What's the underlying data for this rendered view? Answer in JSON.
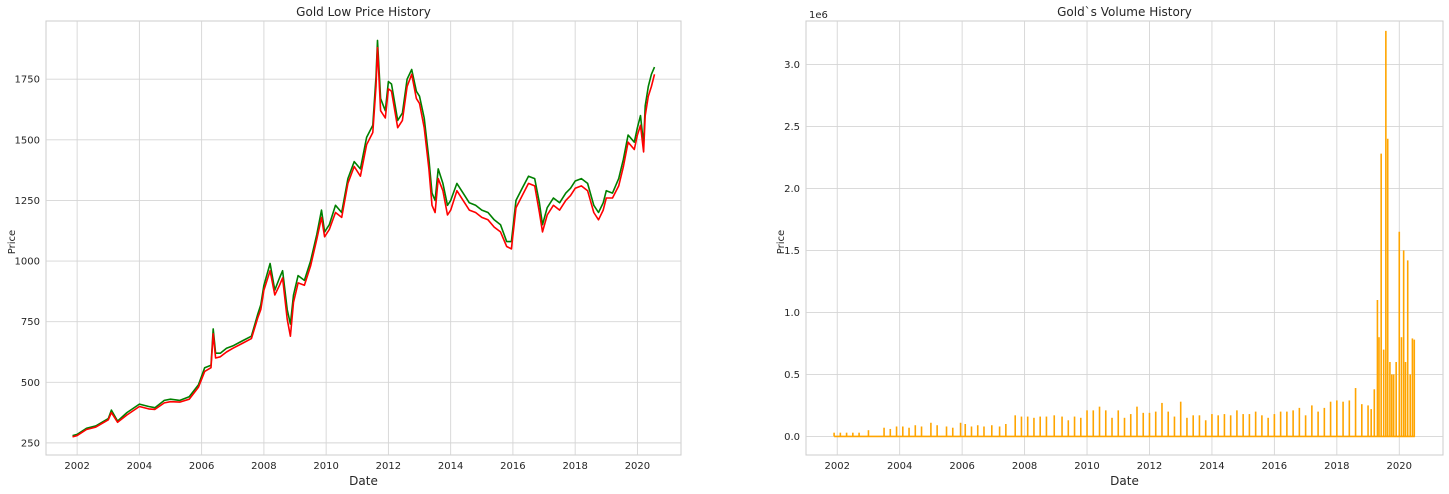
{
  "chart_data": [
    {
      "type": "line",
      "title": "Gold Low Price History",
      "xlabel": "Date",
      "ylabel": "Price",
      "xlim": [
        2001.0,
        2021.4
      ],
      "ylim": [
        200,
        1990
      ],
      "xticks": [
        2002,
        2004,
        2006,
        2008,
        2010,
        2012,
        2014,
        2016,
        2018,
        2020
      ],
      "xtick_labels": [
        "2002",
        "2004",
        "2006",
        "2008",
        "2010",
        "2012",
        "2014",
        "2016",
        "2018",
        "2020"
      ],
      "yticks": [
        250,
        500,
        750,
        1000,
        1250,
        1500,
        1750
      ],
      "ytick_labels": [
        "250",
        "500",
        "750",
        "1000",
        "1250",
        "1500",
        "1750"
      ],
      "grid": true,
      "series": [
        {
          "color": "#008000",
          "x": [
            2001.85,
            2002.0,
            2002.3,
            2002.6,
            2003.0,
            2003.1,
            2003.3,
            2003.6,
            2004.0,
            2004.3,
            2004.5,
            2004.8,
            2005.0,
            2005.3,
            2005.6,
            2005.9,
            2006.1,
            2006.3,
            2006.37,
            2006.45,
            2006.6,
            2006.8,
            2007.0,
            2007.3,
            2007.6,
            2007.8,
            2007.9,
            2008.0,
            2008.2,
            2008.35,
            2008.5,
            2008.6,
            2008.75,
            2008.85,
            2008.95,
            2009.1,
            2009.3,
            2009.5,
            2009.7,
            2009.85,
            2009.95,
            2010.1,
            2010.3,
            2010.5,
            2010.7,
            2010.9,
            2011.1,
            2011.3,
            2011.5,
            2011.6,
            2011.65,
            2011.75,
            2011.9,
            2012.0,
            2012.1,
            2012.3,
            2012.45,
            2012.6,
            2012.75,
            2012.9,
            2013.0,
            2013.15,
            2013.3,
            2013.4,
            2013.5,
            2013.6,
            2013.75,
            2013.9,
            2014.0,
            2014.2,
            2014.4,
            2014.6,
            2014.8,
            2015.0,
            2015.2,
            2015.4,
            2015.6,
            2015.8,
            2015.95,
            2016.1,
            2016.3,
            2016.5,
            2016.7,
            2016.85,
            2016.95,
            2017.1,
            2017.3,
            2017.5,
            2017.7,
            2017.85,
            2018.0,
            2018.2,
            2018.4,
            2018.6,
            2018.75,
            2018.9,
            2019.0,
            2019.2,
            2019.4,
            2019.55,
            2019.7,
            2019.9,
            2020.0,
            2020.1,
            2020.2,
            2020.25,
            2020.35,
            2020.45,
            2020.55
          ],
          "y": [
            280,
            285,
            310,
            320,
            350,
            385,
            340,
            375,
            410,
            400,
            395,
            425,
            430,
            425,
            440,
            490,
            560,
            570,
            720,
            620,
            620,
            640,
            650,
            670,
            690,
            780,
            820,
            900,
            990,
            880,
            930,
            960,
            800,
            740,
            860,
            940,
            920,
            1000,
            1110,
            1210,
            1120,
            1150,
            1230,
            1200,
            1340,
            1410,
            1380,
            1510,
            1560,
            1760,
            1910,
            1670,
            1620,
            1740,
            1730,
            1580,
            1610,
            1750,
            1790,
            1700,
            1680,
            1590,
            1420,
            1280,
            1250,
            1380,
            1320,
            1230,
            1250,
            1320,
            1280,
            1240,
            1230,
            1210,
            1200,
            1170,
            1150,
            1080,
            1080,
            1250,
            1300,
            1350,
            1340,
            1240,
            1150,
            1220,
            1260,
            1240,
            1280,
            1300,
            1330,
            1340,
            1320,
            1230,
            1200,
            1240,
            1290,
            1280,
            1340,
            1420,
            1520,
            1490,
            1550,
            1600,
            1480,
            1640,
            1720,
            1770,
            1800
          ]
        },
        {
          "color": "#ff0000",
          "x": [
            2001.85,
            2002.0,
            2002.3,
            2002.6,
            2003.0,
            2003.1,
            2003.3,
            2003.6,
            2004.0,
            2004.3,
            2004.5,
            2004.8,
            2005.0,
            2005.3,
            2005.6,
            2005.9,
            2006.1,
            2006.3,
            2006.37,
            2006.45,
            2006.6,
            2006.8,
            2007.0,
            2007.3,
            2007.6,
            2007.8,
            2007.9,
            2008.0,
            2008.2,
            2008.35,
            2008.5,
            2008.6,
            2008.75,
            2008.85,
            2008.95,
            2009.1,
            2009.3,
            2009.5,
            2009.7,
            2009.85,
            2009.95,
            2010.1,
            2010.3,
            2010.5,
            2010.7,
            2010.9,
            2011.1,
            2011.3,
            2011.5,
            2011.6,
            2011.65,
            2011.75,
            2011.9,
            2012.0,
            2012.1,
            2012.3,
            2012.45,
            2012.6,
            2012.75,
            2012.9,
            2013.0,
            2013.15,
            2013.3,
            2013.4,
            2013.5,
            2013.6,
            2013.75,
            2013.9,
            2014.0,
            2014.2,
            2014.4,
            2014.6,
            2014.8,
            2015.0,
            2015.2,
            2015.4,
            2015.6,
            2015.8,
            2015.95,
            2016.1,
            2016.3,
            2016.5,
            2016.7,
            2016.85,
            2016.95,
            2017.1,
            2017.3,
            2017.5,
            2017.7,
            2017.85,
            2018.0,
            2018.2,
            2018.4,
            2018.6,
            2018.75,
            2018.9,
            2019.0,
            2019.2,
            2019.4,
            2019.55,
            2019.7,
            2019.9,
            2020.0,
            2020.1,
            2020.2,
            2020.25,
            2020.35,
            2020.45,
            2020.55
          ],
          "y": [
            275,
            280,
            305,
            315,
            345,
            375,
            335,
            365,
            400,
            390,
            388,
            415,
            420,
            418,
            430,
            480,
            545,
            560,
            700,
            600,
            605,
            625,
            640,
            660,
            680,
            765,
            800,
            880,
            960,
            860,
            900,
            930,
            760,
            690,
            830,
            910,
            900,
            980,
            1090,
            1180,
            1100,
            1130,
            1200,
            1180,
            1320,
            1390,
            1350,
            1480,
            1530,
            1720,
            1880,
            1620,
            1590,
            1710,
            1700,
            1550,
            1580,
            1720,
            1770,
            1670,
            1650,
            1550,
            1380,
            1230,
            1200,
            1340,
            1290,
            1190,
            1210,
            1290,
            1250,
            1210,
            1200,
            1180,
            1170,
            1140,
            1120,
            1060,
            1050,
            1220,
            1270,
            1320,
            1310,
            1200,
            1120,
            1190,
            1230,
            1210,
            1250,
            1270,
            1300,
            1310,
            1290,
            1200,
            1170,
            1210,
            1260,
            1260,
            1310,
            1390,
            1490,
            1460,
            1520,
            1560,
            1450,
            1600,
            1680,
            1720,
            1770
          ]
        }
      ]
    },
    {
      "type": "bar",
      "title": "Gold`s Volume History",
      "xlabel": "Date",
      "ylabel": "Price",
      "offset_label": "1e6",
      "xlim": [
        2001.0,
        2021.4
      ],
      "ylim": [
        -0.15,
        3.35
      ],
      "xticks": [
        2002,
        2004,
        2006,
        2008,
        2010,
        2012,
        2014,
        2016,
        2018,
        2020
      ],
      "xtick_labels": [
        "2002",
        "2004",
        "2006",
        "2008",
        "2010",
        "2012",
        "2014",
        "2016",
        "2018",
        "2020"
      ],
      "yticks": [
        0.0,
        0.5,
        1.0,
        1.5,
        2.0,
        2.5,
        3.0
      ],
      "ytick_labels": [
        "0.0",
        "0.5",
        "1.0",
        "1.5",
        "2.0",
        "2.5",
        "3.0"
      ],
      "grid": true,
      "baseline_range": [
        2001.9,
        2020.5
      ],
      "series": [
        {
          "color": "#ffa500",
          "x": [
            2001.9,
            2002.1,
            2002.3,
            2002.5,
            2002.7,
            2003.0,
            2003.5,
            2003.7,
            2003.9,
            2004.1,
            2004.3,
            2004.5,
            2004.7,
            2005.0,
            2005.2,
            2005.5,
            2005.7,
            2005.95,
            2006.1,
            2006.3,
            2006.5,
            2006.7,
            2006.95,
            2007.2,
            2007.4,
            2007.7,
            2007.9,
            2008.1,
            2008.3,
            2008.5,
            2008.7,
            2008.95,
            2009.2,
            2009.4,
            2009.6,
            2009.8,
            2010.0,
            2010.2,
            2010.4,
            2010.6,
            2010.8,
            2011.0,
            2011.2,
            2011.4,
            2011.6,
            2011.8,
            2012.0,
            2012.2,
            2012.4,
            2012.6,
            2012.8,
            2013.0,
            2013.2,
            2013.4,
            2013.6,
            2013.8,
            2014.0,
            2014.2,
            2014.4,
            2014.6,
            2014.8,
            2015.0,
            2015.2,
            2015.4,
            2015.6,
            2015.8,
            2016.0,
            2016.2,
            2016.4,
            2016.6,
            2016.8,
            2017.0,
            2017.2,
            2017.4,
            2017.6,
            2017.8,
            2018.0,
            2018.2,
            2018.4,
            2018.6,
            2018.8,
            2019.0,
            2019.1,
            2019.2,
            2019.3,
            2019.35,
            2019.42,
            2019.5,
            2019.57,
            2019.63,
            2019.7,
            2019.76,
            2019.82,
            2019.9,
            2020.0,
            2020.07,
            2020.14,
            2020.2,
            2020.27,
            2020.35,
            2020.42,
            2020.48
          ],
          "y": [
            0.03,
            0.03,
            0.03,
            0.03,
            0.03,
            0.05,
            0.07,
            0.06,
            0.08,
            0.08,
            0.07,
            0.09,
            0.08,
            0.11,
            0.09,
            0.08,
            0.07,
            0.11,
            0.1,
            0.08,
            0.09,
            0.08,
            0.09,
            0.08,
            0.1,
            0.17,
            0.16,
            0.16,
            0.15,
            0.16,
            0.16,
            0.17,
            0.16,
            0.13,
            0.16,
            0.15,
            0.21,
            0.21,
            0.24,
            0.21,
            0.15,
            0.21,
            0.15,
            0.18,
            0.24,
            0.19,
            0.19,
            0.2,
            0.27,
            0.2,
            0.16,
            0.28,
            0.15,
            0.17,
            0.17,
            0.13,
            0.18,
            0.17,
            0.18,
            0.17,
            0.21,
            0.18,
            0.18,
            0.2,
            0.17,
            0.15,
            0.18,
            0.2,
            0.2,
            0.21,
            0.23,
            0.17,
            0.25,
            0.2,
            0.23,
            0.28,
            0.29,
            0.28,
            0.29,
            0.39,
            0.26,
            0.25,
            0.22,
            0.38,
            1.1,
            0.8,
            2.28,
            0.7,
            3.27,
            2.4,
            0.6,
            0.5,
            0.5,
            0.6,
            1.65,
            0.8,
            1.5,
            0.6,
            1.42,
            0.5,
            0.79,
            0.78
          ]
        }
      ]
    }
  ]
}
